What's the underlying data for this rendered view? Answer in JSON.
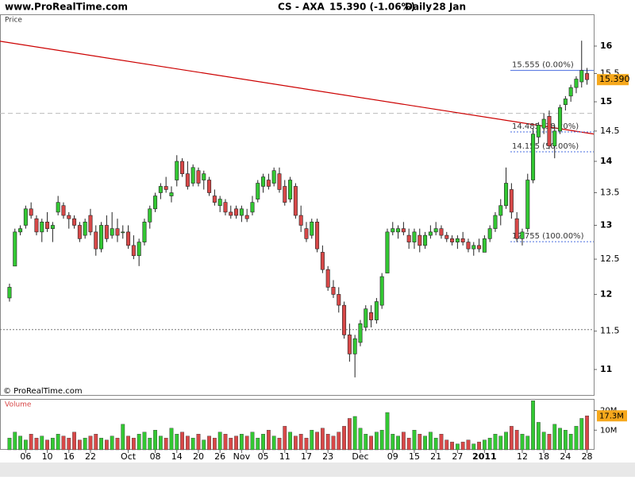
{
  "header": {
    "site": "www.ProRealTime.com",
    "symbol": "CS - AXA",
    "price": "15.390 (-1.06%)",
    "period": "Daily",
    "date": "28 Jan"
  },
  "chart_data": [
    {
      "type": "candlestick",
      "title": "Price",
      "watermark": "© ProRealTime.com",
      "up_color": "#33c833",
      "down_color": "#d84848",
      "log_scale": true,
      "xlim": [
        -1.76,
        108.24
      ],
      "ylim": [
        10.68,
        16.6
      ],
      "yticks": [
        11,
        11.5,
        12,
        12.5,
        13,
        13.5,
        14,
        14.5,
        15,
        15.5,
        16
      ],
      "xticks": [
        {
          "value": 3,
          "label": "06"
        },
        {
          "value": 7,
          "label": "10"
        },
        {
          "value": 11,
          "label": "16"
        },
        {
          "value": 15,
          "label": "22"
        },
        {
          "value": 22,
          "label": "Oct"
        },
        {
          "value": 27,
          "label": "08"
        },
        {
          "value": 31,
          "label": "14"
        },
        {
          "value": 35,
          "label": "20"
        },
        {
          "value": 39,
          "label": "26"
        },
        {
          "value": 43,
          "label": "Nov"
        },
        {
          "value": 47,
          "label": "05"
        },
        {
          "value": 51,
          "label": "11"
        },
        {
          "value": 55,
          "label": "17"
        },
        {
          "value": 59,
          "label": "23"
        },
        {
          "value": 65,
          "label": "Dec"
        },
        {
          "value": 71,
          "label": "09"
        },
        {
          "value": 75,
          "label": "15"
        },
        {
          "value": 79,
          "label": "21"
        },
        {
          "value": 83,
          "label": "27"
        },
        {
          "value": 88,
          "label": "2011"
        },
        {
          "value": 95,
          "label": "12"
        },
        {
          "value": 99,
          "label": "18"
        },
        {
          "value": 103,
          "label": "24"
        },
        {
          "value": 107,
          "label": "28"
        }
      ],
      "open": [
        11.95,
        12.4,
        12.9,
        13.0,
        13.25,
        13.1,
        12.9,
        13.05,
        12.95,
        13.2,
        13.3,
        13.15,
        13.1,
        13.0,
        12.85,
        13.15,
        12.9,
        12.65,
        13.0,
        12.85,
        12.95,
        12.9,
        12.9,
        12.7,
        12.55,
        12.75,
        13.05,
        13.25,
        13.5,
        13.6,
        13.45,
        13.7,
        14.0,
        13.8,
        13.65,
        13.85,
        13.7,
        13.7,
        13.45,
        13.3,
        13.35,
        13.2,
        13.25,
        13.15,
        13.15,
        13.2,
        13.4,
        13.6,
        13.7,
        13.65,
        13.8,
        13.6,
        13.4,
        13.6,
        13.15,
        12.95,
        12.85,
        13.05,
        12.6,
        12.35,
        12.1,
        12.0,
        11.85,
        11.45,
        11.2,
        11.35,
        11.55,
        11.75,
        11.65,
        11.85,
        12.3,
        12.9,
        12.9,
        12.95,
        12.85,
        12.75,
        12.85,
        12.7,
        12.85,
        12.9,
        12.95,
        12.85,
        12.8,
        12.75,
        12.8,
        12.75,
        12.65,
        12.7,
        12.6,
        12.8,
        12.95,
        13.15,
        13.3,
        13.55,
        13.1,
        12.8,
        12.95,
        13.7,
        14.4,
        14.55,
        14.75,
        14.25,
        14.5,
        14.95,
        15.1,
        15.25,
        15.35,
        15.5
      ],
      "high": [
        12.15,
        12.95,
        13.0,
        13.3,
        13.35,
        13.15,
        13.1,
        13.2,
        13.05,
        13.45,
        13.35,
        13.2,
        13.15,
        13.05,
        13.1,
        13.25,
        13.0,
        13.05,
        13.15,
        13.2,
        13.1,
        13.0,
        13.0,
        12.85,
        12.8,
        13.1,
        13.3,
        13.5,
        13.65,
        13.75,
        13.6,
        14.1,
        14.05,
        14.0,
        13.95,
        13.9,
        13.85,
        13.75,
        13.55,
        13.45,
        13.4,
        13.3,
        13.3,
        13.3,
        13.25,
        13.45,
        13.7,
        13.8,
        13.8,
        13.9,
        13.9,
        13.7,
        13.75,
        13.65,
        13.3,
        13.05,
        13.1,
        13.1,
        12.7,
        12.4,
        12.2,
        12.1,
        11.9,
        11.6,
        11.45,
        11.65,
        11.85,
        11.85,
        11.95,
        12.3,
        12.95,
        13.05,
        13.0,
        13.05,
        12.95,
        12.95,
        12.95,
        12.9,
        13.0,
        13.05,
        13.0,
        12.9,
        12.85,
        12.85,
        12.9,
        12.8,
        12.75,
        12.8,
        12.85,
        13.0,
        13.2,
        13.4,
        13.9,
        13.65,
        13.2,
        12.95,
        13.8,
        14.55,
        14.65,
        14.8,
        14.85,
        14.6,
        14.95,
        15.1,
        15.3,
        15.45,
        16.1,
        15.6
      ],
      "low": [
        11.9,
        12.4,
        12.85,
        12.95,
        13.1,
        12.85,
        12.75,
        12.9,
        12.75,
        13.15,
        13.1,
        12.95,
        12.95,
        12.75,
        12.8,
        12.85,
        12.55,
        12.6,
        12.75,
        12.8,
        12.75,
        12.8,
        12.65,
        12.5,
        12.4,
        12.7,
        12.95,
        13.2,
        13.4,
        13.5,
        13.35,
        13.6,
        13.75,
        13.55,
        13.6,
        13.6,
        13.55,
        13.45,
        13.3,
        13.2,
        13.15,
        13.1,
        13.1,
        13.05,
        13.05,
        13.15,
        13.35,
        13.5,
        13.55,
        13.6,
        13.5,
        13.3,
        13.35,
        13.1,
        12.9,
        12.75,
        12.8,
        12.6,
        12.3,
        12.05,
        11.95,
        11.75,
        11.4,
        11.1,
        10.9,
        11.3,
        11.5,
        11.55,
        11.6,
        11.8,
        12.3,
        12.85,
        12.8,
        12.85,
        12.65,
        12.65,
        12.6,
        12.65,
        12.8,
        12.85,
        12.8,
        12.75,
        12.7,
        12.65,
        12.7,
        12.6,
        12.55,
        12.6,
        12.6,
        12.75,
        12.9,
        13.0,
        13.25,
        13.1,
        12.75,
        12.7,
        12.9,
        13.65,
        14.3,
        14.45,
        14.2,
        14.05,
        14.45,
        14.85,
        15.0,
        15.15,
        15.25,
        15.3
      ],
      "close": [
        12.1,
        12.9,
        12.95,
        13.25,
        13.15,
        12.9,
        13.05,
        12.95,
        13.0,
        13.35,
        13.15,
        13.1,
        13.0,
        12.8,
        13.05,
        12.9,
        12.65,
        13.0,
        12.8,
        12.95,
        12.85,
        12.9,
        12.7,
        12.55,
        12.75,
        13.05,
        13.25,
        13.45,
        13.6,
        13.55,
        13.5,
        14.0,
        13.8,
        13.6,
        13.9,
        13.65,
        13.8,
        13.5,
        13.35,
        13.4,
        13.2,
        13.15,
        13.15,
        13.25,
        13.1,
        13.35,
        13.65,
        13.75,
        13.6,
        13.85,
        13.55,
        13.35,
        13.7,
        13.15,
        13.0,
        12.8,
        13.05,
        12.65,
        12.35,
        12.1,
        12.0,
        11.85,
        11.45,
        11.2,
        11.4,
        11.6,
        11.8,
        11.65,
        11.9,
        12.25,
        12.9,
        12.95,
        12.95,
        12.9,
        12.75,
        12.9,
        12.7,
        12.85,
        12.9,
        12.95,
        12.85,
        12.8,
        12.75,
        12.8,
        12.75,
        12.65,
        12.7,
        12.65,
        12.8,
        12.95,
        13.15,
        13.3,
        13.65,
        13.2,
        12.8,
        12.9,
        13.7,
        14.45,
        14.6,
        14.7,
        14.25,
        14.5,
        14.9,
        15.05,
        15.25,
        15.4,
        15.555,
        15.39
      ],
      "last_price": {
        "value": 15.39,
        "label": "15.390"
      },
      "fib_levels": [
        {
          "value": 15.555,
          "label": "15.555 (0.00%)"
        },
        {
          "value": 14.485,
          "label": "14.485 (38.20%)"
        },
        {
          "value": 14.155,
          "label": "14.155 (50.00%)"
        },
        {
          "value": 12.755,
          "label": "12.755 (100.00%)"
        }
      ],
      "trendline": {
        "x": [
          -1.76,
          108.24
        ],
        "values": [
          16.09,
          14.45
        ],
        "color": "#cc0000"
      },
      "reference_lines": [
        {
          "value": 14.8,
          "style": "dashed"
        },
        {
          "value": 11.52,
          "style": "dotted"
        }
      ]
    },
    {
      "type": "bar",
      "title": "Volume",
      "up_color": "#33c833",
      "down_color": "#d84848",
      "xlim": [
        -1.76,
        108.24
      ],
      "ylim": [
        0,
        25.5
      ],
      "yticks": [
        {
          "value": 10,
          "label": "10M"
        },
        {
          "value": 20,
          "label": "20M"
        }
      ],
      "values": [
        6,
        9,
        7,
        5,
        8,
        6,
        7,
        5,
        6,
        8,
        7,
        6,
        9,
        5,
        6,
        7,
        8,
        6,
        5,
        7,
        6,
        13,
        7,
        6,
        8,
        9,
        6,
        10,
        7,
        6,
        11,
        8,
        9,
        7,
        6,
        8,
        5,
        7,
        6,
        9,
        8,
        6,
        7,
        8,
        7,
        9,
        6,
        8,
        10,
        7,
        6,
        12,
        9,
        7,
        8,
        6,
        10,
        9,
        11,
        8,
        7,
        9,
        12,
        16,
        17,
        11,
        8,
        7,
        9,
        10,
        19,
        8,
        7,
        9,
        6,
        10,
        8,
        7,
        9,
        6,
        8,
        5,
        4,
        3,
        4,
        5,
        3,
        4,
        5,
        6,
        8,
        7,
        9,
        12,
        10,
        8,
        7,
        25,
        14,
        9,
        8,
        13,
        11,
        10,
        8,
        12,
        16,
        17.3
      ],
      "last_value": {
        "value": 17.3,
        "label": "17.3M"
      }
    }
  ]
}
